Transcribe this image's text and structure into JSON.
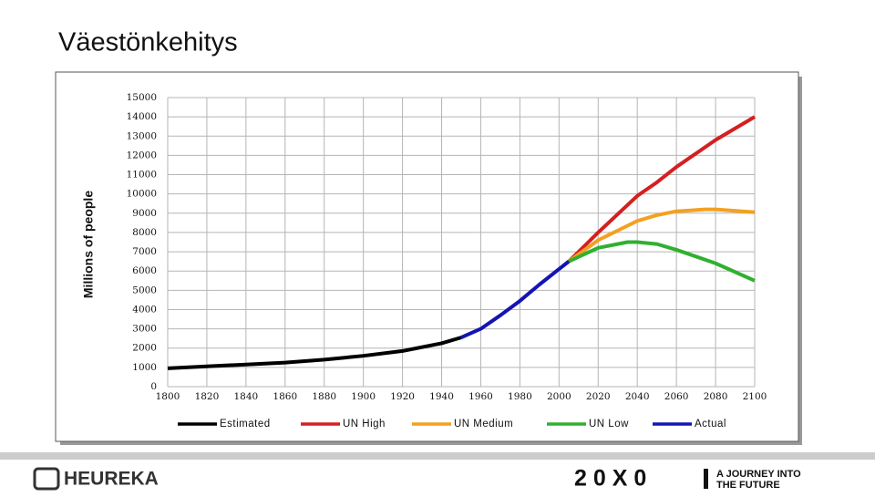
{
  "slide": {
    "title": "Väestönkehitys",
    "footer_logo": "HEUREKA",
    "footer_brand": "2 0 X 0",
    "footer_tagline_1": "A JOURNEY INTO",
    "footer_tagline_2": "THE FUTURE"
  },
  "chart_data": {
    "type": "line",
    "y_label": "Millions of people",
    "series": [
      {
        "name": "Estimated",
        "color": "#000000",
        "x": [
          1800,
          1820,
          1840,
          1860,
          1880,
          1900,
          1920,
          1940,
          1950
        ],
        "values": [
          950,
          1050,
          1150,
          1250,
          1400,
          1600,
          1850,
          2250,
          2550
        ]
      },
      {
        "name": "UN High",
        "color": "#d42020",
        "x": [
          2005,
          2020,
          2040,
          2050,
          2060,
          2080,
          2100
        ],
        "values": [
          6500,
          8000,
          9900,
          10600,
          11400,
          12800,
          14000
        ]
      },
      {
        "name": "UN Medium",
        "color": "#f4a020",
        "x": [
          2005,
          2020,
          2040,
          2050,
          2060,
          2075,
          2080,
          2100
        ],
        "values": [
          6500,
          7600,
          8600,
          8900,
          9100,
          9200,
          9200,
          9050
        ]
      },
      {
        "name": "UN Low",
        "color": "#30b030",
        "x": [
          2005,
          2020,
          2035,
          2040,
          2050,
          2060,
          2080,
          2100
        ],
        "values": [
          6500,
          7200,
          7500,
          7500,
          7400,
          7100,
          6400,
          5500
        ]
      },
      {
        "name": "Actual",
        "color": "#1414b4",
        "x": [
          1950,
          1960,
          1970,
          1980,
          1990,
          2000,
          2005
        ],
        "values": [
          2550,
          3000,
          3700,
          4450,
          5300,
          6100,
          6500
        ]
      }
    ],
    "xlim": [
      1800,
      2100
    ],
    "xticks": [
      1800,
      1820,
      1840,
      1860,
      1880,
      1900,
      1920,
      1940,
      1960,
      1980,
      2000,
      2020,
      2040,
      2060,
      2080,
      2100
    ],
    "ylim": [
      0,
      15000
    ],
    "yticks": [
      0,
      1000,
      2000,
      3000,
      4000,
      5000,
      6000,
      7000,
      8000,
      9000,
      10000,
      11000,
      12000,
      13000,
      14000,
      15000
    ],
    "grid": true,
    "legend": "bottom"
  }
}
